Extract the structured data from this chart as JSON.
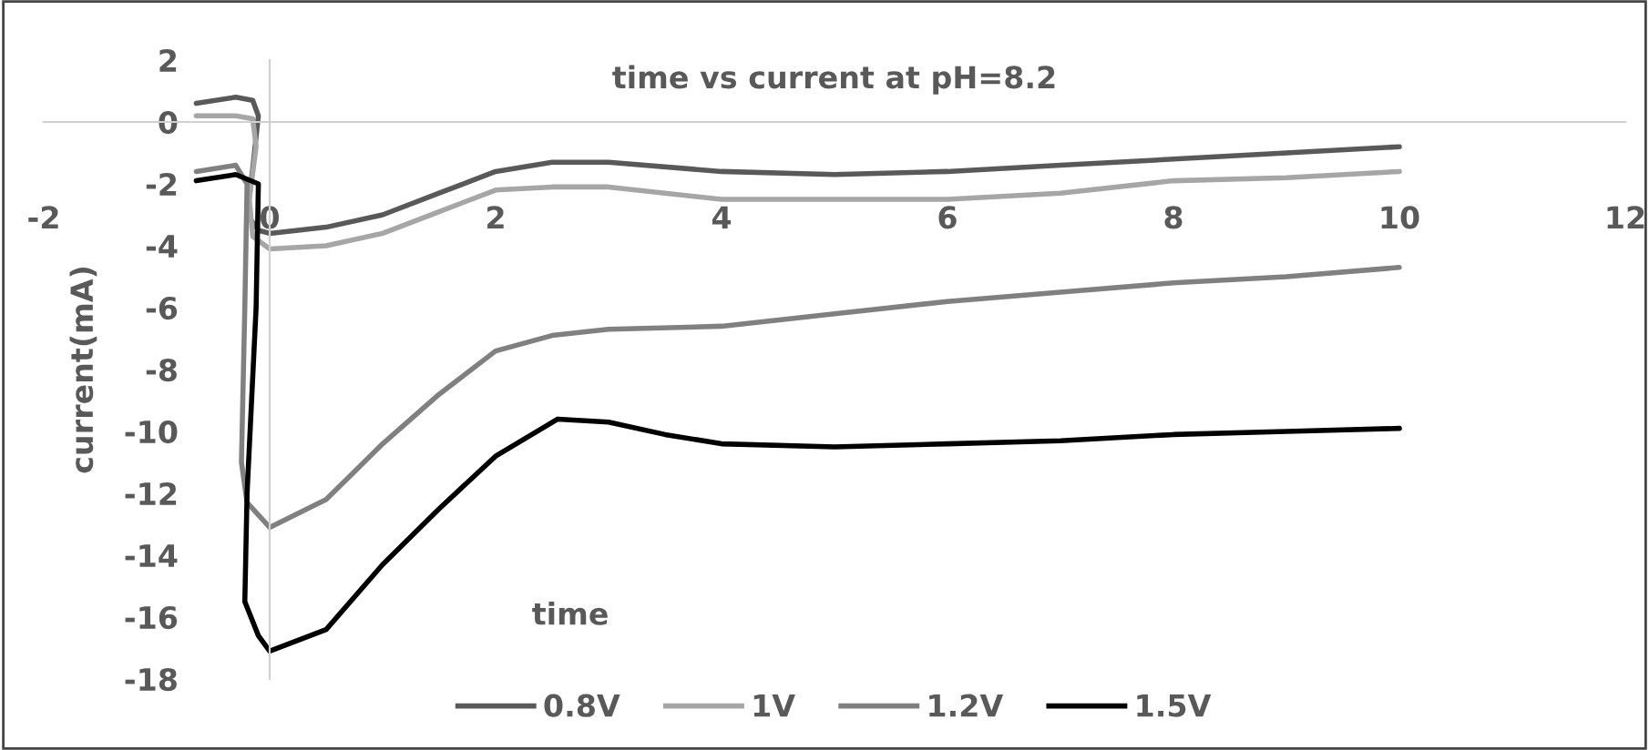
{
  "chart_data": {
    "type": "line",
    "title": "time vs current at pH=8.2",
    "xlabel": "time",
    "ylabel": "current(mA)",
    "xlim": [
      -2,
      12
    ],
    "xticks": [
      -2,
      0,
      2,
      4,
      6,
      8,
      10,
      12
    ],
    "ylim": [
      -18,
      2
    ],
    "yticks": [
      -18,
      -16,
      -14,
      -12,
      -10,
      -8,
      -6,
      -4,
      -2,
      0,
      2
    ],
    "legend": "bottom",
    "marker": "none",
    "line_style": "solid",
    "series": [
      {
        "name": "0.8V",
        "color": "#595959",
        "x": [
          -0.65,
          -0.3,
          -0.15,
          -0.1,
          -0.15,
          -0.2,
          -0.1,
          0,
          0.5,
          1,
          1.5,
          2,
          2.5,
          3,
          4,
          5,
          6,
          7,
          8,
          9,
          10
        ],
        "values": [
          0.6,
          0.8,
          0.7,
          0.2,
          -1.5,
          -3.0,
          -3.5,
          -3.6,
          -3.4,
          -3.0,
          -2.3,
          -1.6,
          -1.3,
          -1.3,
          -1.6,
          -1.7,
          -1.6,
          -1.4,
          -1.2,
          -1.0,
          -0.8
        ]
      },
      {
        "name": "1V",
        "color": "#a6a6a6",
        "x": [
          -0.65,
          -0.3,
          -0.15,
          -0.12,
          -0.18,
          -0.15,
          0,
          0.5,
          1,
          1.5,
          2,
          2.5,
          3,
          4,
          5,
          6,
          7,
          8,
          9,
          10
        ],
        "values": [
          0.2,
          0.2,
          0.1,
          -0.8,
          -2.5,
          -3.7,
          -4.1,
          -4.0,
          -3.6,
          -2.9,
          -2.2,
          -2.1,
          -2.1,
          -2.5,
          -2.5,
          -2.5,
          -2.3,
          -1.9,
          -1.8,
          -1.6
        ]
      },
      {
        "name": "1.2V",
        "color": "#808080",
        "x": [
          -0.65,
          -0.3,
          -0.2,
          -0.22,
          -0.25,
          -0.2,
          0,
          0.5,
          1,
          1.5,
          2,
          2.5,
          3,
          4,
          5,
          6,
          7,
          8,
          9,
          10
        ],
        "values": [
          -1.6,
          -1.4,
          -2.0,
          -6.0,
          -11.0,
          -12.3,
          -13.1,
          -12.2,
          -10.4,
          -8.8,
          -7.4,
          -6.9,
          -6.7,
          -6.6,
          -6.2,
          -5.8,
          -5.5,
          -5.2,
          -5.0,
          -4.7
        ]
      },
      {
        "name": "1.5V",
        "color": "#000000",
        "x": [
          -0.65,
          -0.3,
          -0.1,
          -0.12,
          -0.2,
          -0.22,
          -0.1,
          0,
          0.5,
          1,
          1.5,
          2,
          2.55,
          3,
          3.5,
          4,
          5,
          6,
          7,
          8,
          9,
          10
        ],
        "values": [
          -1.9,
          -1.7,
          -2.0,
          -6.0,
          -12.0,
          -15.5,
          -16.6,
          -17.1,
          -16.4,
          -14.3,
          -12.5,
          -10.8,
          -9.6,
          -9.7,
          -10.1,
          -10.4,
          -10.5,
          -10.4,
          -10.3,
          -10.1,
          -10.0,
          -9.9
        ]
      }
    ]
  }
}
